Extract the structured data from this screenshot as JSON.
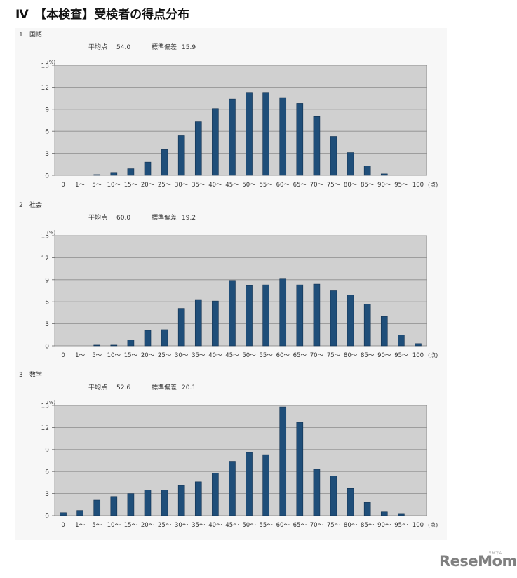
{
  "page": {
    "title": "Ⅳ　【本検査】受検者の得点分布"
  },
  "chart_data": [
    {
      "type": "bar",
      "number": "1",
      "subject": "国語",
      "mean_label": "平均点",
      "mean": "54.0",
      "sd_label": "標準偏差",
      "sd": "15.9",
      "ylabel": "(%)",
      "xlabel": "(点)",
      "ylim": [
        0,
        15
      ],
      "yticks": [
        0,
        3,
        6,
        9,
        12,
        15
      ],
      "categories": [
        "0",
        "1～",
        "5～",
        "10～",
        "15～",
        "20～",
        "25～",
        "30～",
        "35～",
        "40～",
        "45～",
        "50～",
        "55～",
        "60～",
        "65～",
        "70～",
        "75～",
        "80～",
        "85～",
        "90～",
        "95～",
        "100"
      ],
      "values": [
        0,
        0,
        0.1,
        0.4,
        0.9,
        1.8,
        3.5,
        5.4,
        7.3,
        9.1,
        10.4,
        11.3,
        11.3,
        10.6,
        9.8,
        8.0,
        5.3,
        3.1,
        1.3,
        0.2,
        0,
        0
      ],
      "grid": true,
      "plot_bg": "#d0d0d0",
      "bar_color": "#1f4e79"
    },
    {
      "type": "bar",
      "number": "2",
      "subject": "社会",
      "mean_label": "平均点",
      "mean": "60.0",
      "sd_label": "標準偏差",
      "sd": "19.2",
      "ylabel": "(%)",
      "xlabel": "(点)",
      "ylim": [
        0,
        15
      ],
      "yticks": [
        0,
        3,
        6,
        9,
        12,
        15
      ],
      "categories": [
        "0",
        "1～",
        "5～",
        "10～",
        "15～",
        "20～",
        "25～",
        "30～",
        "35～",
        "40～",
        "45～",
        "50～",
        "55～",
        "60～",
        "65～",
        "70～",
        "75～",
        "80～",
        "85～",
        "90～",
        "95～",
        "100"
      ],
      "values": [
        0,
        0,
        0.1,
        0.1,
        0.8,
        2.1,
        2.2,
        5.1,
        6.3,
        6.1,
        8.9,
        8.2,
        8.3,
        9.1,
        8.3,
        8.4,
        7.5,
        6.9,
        5.7,
        4.0,
        1.5,
        0.3
      ],
      "grid": true,
      "plot_bg": "#d0d0d0",
      "bar_color": "#1f4e79"
    },
    {
      "type": "bar",
      "number": "3",
      "subject": "数学",
      "mean_label": "平均点",
      "mean": "52.6",
      "sd_label": "標準偏差",
      "sd": "20.1",
      "ylabel": "(%)",
      "xlabel": "(点)",
      "ylim": [
        0,
        15
      ],
      "yticks": [
        0,
        3,
        6,
        9,
        12,
        15
      ],
      "categories": [
        "0",
        "1～",
        "5～",
        "10～",
        "15～",
        "20～",
        "25～",
        "30～",
        "35～",
        "40～",
        "45～",
        "50～",
        "55～",
        "60～",
        "65～",
        "70～",
        "75～",
        "80～",
        "85～",
        "90～",
        "95～",
        "100"
      ],
      "values": [
        0.4,
        0.7,
        2.1,
        2.6,
        3.0,
        3.5,
        3.5,
        4.1,
        4.6,
        5.8,
        7.4,
        8.6,
        8.3,
        14.8,
        12.7,
        6.3,
        5.4,
        3.7,
        1.8,
        0.5,
        0.2,
        0
      ],
      "grid": true,
      "plot_bg": "#d0d0d0",
      "bar_color": "#1f4e79"
    }
  ],
  "logo": {
    "text": "ReseMom",
    "sub": "リセマム"
  }
}
